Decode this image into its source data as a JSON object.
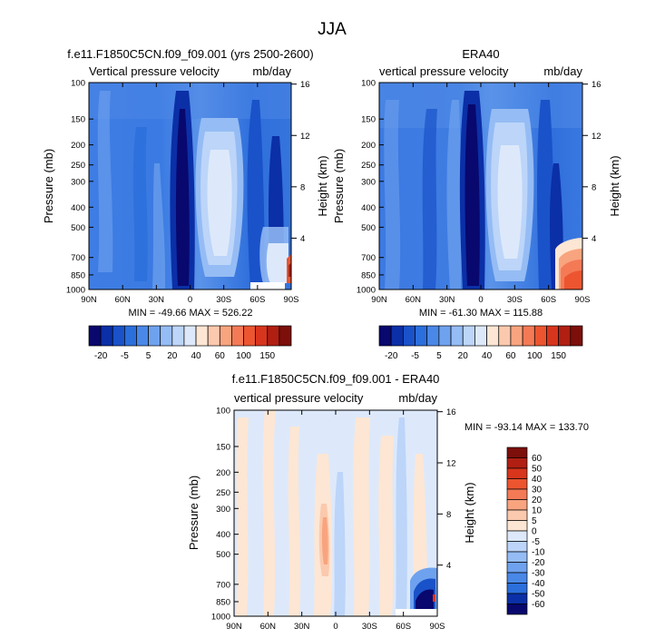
{
  "chart_data": [
    {
      "type": "heatmap",
      "suptitle": "JJA",
      "title": "f.e11.F1850C5CN.f09_f09.001 (yrs 2500-2600)",
      "left_subtitle": "Vertical pressure velocity",
      "right_subtitle": "mb/day",
      "ylabel": "Pressure (mb)",
      "ylabel_right": "Height (km)",
      "x_ticks": [
        "90N",
        "60N",
        "30N",
        "0",
        "30S",
        "60S",
        "90S"
      ],
      "y_ticks": [
        "100",
        "150",
        "200",
        "250",
        "300",
        "400",
        "500",
        "700",
        "850",
        "1000"
      ],
      "y2_ticks": [
        "16",
        "12",
        "8",
        "4"
      ],
      "ylim": [
        1000,
        100
      ],
      "xlim": [
        "90N",
        "90S"
      ],
      "min_max": "MIN = -49.66  MAX = 526.22",
      "colorbar_orientation": "horizontal",
      "colorbar_labels": [
        "-20",
        "-5",
        "5",
        "20",
        "40",
        "60",
        "100",
        "150"
      ]
    },
    {
      "type": "heatmap",
      "title": "ERA40",
      "left_subtitle": "vertical pressure velocity",
      "right_subtitle": "mb/day",
      "ylabel": "Pressure (mb)",
      "ylabel_right": "Height (km)",
      "x_ticks": [
        "90N",
        "60N",
        "30N",
        "0",
        "30S",
        "60S",
        "90S"
      ],
      "y_ticks": [
        "100",
        "150",
        "200",
        "250",
        "300",
        "400",
        "500",
        "700",
        "850",
        "1000"
      ],
      "y2_ticks": [
        "16",
        "12",
        "8",
        "4"
      ],
      "ylim": [
        1000,
        100
      ],
      "xlim": [
        "90N",
        "90S"
      ],
      "min_max": "MIN = -61.30  MAX = 115.88",
      "colorbar_orientation": "horizontal",
      "colorbar_labels": [
        "-20",
        "-5",
        "5",
        "20",
        "40",
        "60",
        "100",
        "150"
      ]
    },
    {
      "type": "heatmap",
      "title": "f.e11.F1850C5CN.f09_f09.001 - ERA40",
      "left_subtitle": "vertical pressure velocity",
      "right_subtitle": "mb/day",
      "ylabel": "Pressure (mb)",
      "ylabel_right": "Height (km)",
      "x_ticks": [
        "90N",
        "60N",
        "30N",
        "0",
        "30S",
        "60S",
        "90S"
      ],
      "y_ticks": [
        "100",
        "150",
        "200",
        "250",
        "300",
        "400",
        "500",
        "700",
        "850",
        "1000"
      ],
      "y2_ticks": [
        "16",
        "12",
        "8",
        "4"
      ],
      "ylim": [
        1000,
        100
      ],
      "xlim": [
        "90N",
        "90S"
      ],
      "min_max": "MIN = -93.14  MAX = 133.70",
      "colorbar_orientation": "vertical",
      "colorbar_labels": [
        "60",
        "50",
        "40",
        "30",
        "20",
        "10",
        "5",
        "0",
        "-5",
        "-10",
        "-20",
        "-30",
        "-40",
        "-50",
        "-60"
      ]
    }
  ],
  "colors": {
    "panel_scale": [
      "#08086e",
      "#0b2fa6",
      "#1a52c9",
      "#2b6fdc",
      "#4a88e8",
      "#6fa2ee",
      "#95bcf4",
      "#bcd5f9",
      "#dde9fb",
      "#fde6d3",
      "#fbc9ad",
      "#f8a47f",
      "#f47a56",
      "#ec5530",
      "#d8351d",
      "#b01f12",
      "#7c0f0a"
    ],
    "diff_scale": [
      "#7c0f0a",
      "#b01f12",
      "#d8351d",
      "#ec5530",
      "#f47a56",
      "#f8a47f",
      "#fbc9ad",
      "#fde6d3",
      "#dde9fb",
      "#bcd5f9",
      "#95bcf4",
      "#6fa2ee",
      "#4a88e8",
      "#2b6fdc",
      "#0b2fa6",
      "#08086e"
    ],
    "blank": "#ffffff"
  }
}
